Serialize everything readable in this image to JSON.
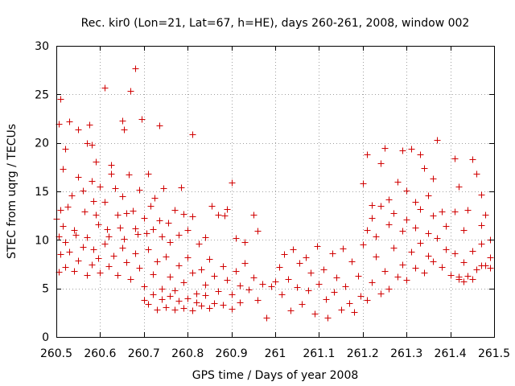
{
  "chart_data": {
    "type": "scatter",
    "title": "Rec. kir0 (Lon=21, Lat=67, h=HE), days 260-261, 2008, window 002",
    "xlabel": "GPS time / Days of year 2008",
    "ylabel": "STEC from uqrg / TECUs",
    "xlim": [
      260.5,
      261.5
    ],
    "ylim": [
      0,
      30
    ],
    "x_ticks": [
      "260.5",
      "260.6",
      "260.7",
      "260.8",
      "260.9",
      "261",
      "261.1",
      "261.2",
      "261.3",
      "261.4",
      "261.5"
    ],
    "y_ticks": [
      "0",
      "5",
      "10",
      "15",
      "20",
      "25",
      "30"
    ],
    "grid": true,
    "marker": "+",
    "color": "#d00000",
    "series": [
      {
        "points": [
          [
            260.505,
            22.0
          ],
          [
            260.51,
            24.5
          ],
          [
            260.515,
            17.3
          ],
          [
            260.52,
            19.4
          ],
          [
            260.53,
            22.2
          ],
          [
            260.55,
            21.4
          ],
          [
            260.57,
            20.0
          ],
          [
            260.575,
            21.9
          ],
          [
            260.58,
            19.8
          ],
          [
            260.59,
            18.1
          ],
          [
            260.61,
            25.7
          ],
          [
            260.625,
            17.7
          ],
          [
            260.65,
            22.3
          ],
          [
            260.655,
            21.4
          ],
          [
            260.67,
            25.4
          ],
          [
            260.68,
            27.7
          ],
          [
            260.695,
            22.5
          ],
          [
            260.735,
            21.8
          ],
          [
            260.81,
            20.9
          ],
          [
            260.5,
            12.2
          ],
          [
            260.505,
            10.4
          ],
          [
            260.51,
            13.1
          ],
          [
            260.515,
            11.4
          ],
          [
            260.52,
            9.8
          ],
          [
            260.525,
            13.4
          ],
          [
            260.535,
            14.6
          ],
          [
            260.54,
            11.0
          ],
          [
            260.545,
            10.5
          ],
          [
            260.55,
            16.5
          ],
          [
            260.56,
            15.1
          ],
          [
            260.565,
            12.9
          ],
          [
            260.57,
            10.3
          ],
          [
            260.58,
            16.1
          ],
          [
            260.585,
            14.0
          ],
          [
            260.59,
            12.6
          ],
          [
            260.595,
            11.6
          ],
          [
            260.6,
            15.5
          ],
          [
            260.61,
            13.9
          ],
          [
            260.615,
            11.1
          ],
          [
            260.62,
            10.4
          ],
          [
            260.625,
            16.8
          ],
          [
            260.635,
            15.3
          ],
          [
            260.64,
            12.6
          ],
          [
            260.645,
            11.3
          ],
          [
            260.65,
            14.5
          ],
          [
            260.655,
            10.1
          ],
          [
            260.66,
            12.8
          ],
          [
            260.665,
            16.7
          ],
          [
            260.675,
            13.0
          ],
          [
            260.68,
            11.2
          ],
          [
            260.685,
            10.6
          ],
          [
            260.69,
            15.2
          ],
          [
            260.7,
            12.3
          ],
          [
            260.705,
            10.7
          ],
          [
            260.71,
            16.8
          ],
          [
            260.715,
            13.5
          ],
          [
            260.72,
            11.1
          ],
          [
            260.725,
            14.3
          ],
          [
            260.735,
            12.0
          ],
          [
            260.74,
            10.4
          ],
          [
            260.745,
            15.3
          ],
          [
            260.755,
            11.8
          ],
          [
            260.76,
            9.8
          ],
          [
            260.77,
            13.1
          ],
          [
            260.78,
            10.5
          ],
          [
            260.785,
            15.4
          ],
          [
            260.79,
            12.7
          ],
          [
            260.8,
            11.0
          ],
          [
            260.81,
            12.4
          ],
          [
            260.825,
            9.6
          ],
          [
            260.84,
            10.3
          ],
          [
            260.855,
            13.5
          ],
          [
            260.87,
            12.6
          ],
          [
            260.885,
            12.5
          ],
          [
            260.89,
            13.2
          ],
          [
            260.9,
            15.9
          ],
          [
            260.91,
            10.2
          ],
          [
            260.93,
            9.8
          ],
          [
            260.95,
            12.6
          ],
          [
            260.96,
            10.9
          ],
          [
            260.505,
            6.7
          ],
          [
            260.51,
            8.5
          ],
          [
            260.52,
            7.2
          ],
          [
            260.53,
            8.8
          ],
          [
            260.54,
            6.8
          ],
          [
            260.55,
            7.9
          ],
          [
            260.56,
            9.3
          ],
          [
            260.57,
            6.4
          ],
          [
            260.58,
            7.5
          ],
          [
            260.585,
            9.0
          ],
          [
            260.595,
            8.1
          ],
          [
            260.6,
            6.6
          ],
          [
            260.61,
            9.6
          ],
          [
            260.62,
            7.3
          ],
          [
            260.63,
            8.4
          ],
          [
            260.64,
            6.4
          ],
          [
            260.65,
            9.2
          ],
          [
            260.66,
            7.7
          ],
          [
            260.67,
            6.0
          ],
          [
            260.68,
            8.6
          ],
          [
            260.69,
            7.1
          ],
          [
            260.7,
            5.2
          ],
          [
            260.71,
            9.0
          ],
          [
            260.72,
            6.5
          ],
          [
            260.73,
            7.8
          ],
          [
            260.74,
            5.0
          ],
          [
            260.75,
            8.3
          ],
          [
            260.76,
            6.2
          ],
          [
            260.77,
            4.8
          ],
          [
            260.78,
            7.4
          ],
          [
            260.79,
            5.6
          ],
          [
            260.8,
            8.2
          ],
          [
            260.81,
            6.6
          ],
          [
            260.82,
            4.5
          ],
          [
            260.83,
            7.0
          ],
          [
            260.84,
            5.4
          ],
          [
            260.85,
            8.0
          ],
          [
            260.86,
            6.3
          ],
          [
            260.87,
            4.7
          ],
          [
            260.88,
            7.3
          ],
          [
            260.89,
            5.9
          ],
          [
            260.9,
            4.4
          ],
          [
            260.91,
            6.8
          ],
          [
            260.92,
            5.3
          ],
          [
            260.93,
            7.6
          ],
          [
            260.94,
            4.9
          ],
          [
            260.95,
            6.1
          ],
          [
            260.96,
            3.8
          ],
          [
            260.97,
            5.5
          ],
          [
            260.98,
            2.0
          ],
          [
            260.99,
            5.2
          ],
          [
            260.7,
            3.8
          ],
          [
            260.71,
            3.4
          ],
          [
            260.72,
            4.4
          ],
          [
            260.73,
            2.8
          ],
          [
            260.74,
            3.9
          ],
          [
            260.75,
            3.1
          ],
          [
            260.76,
            4.2
          ],
          [
            260.77,
            2.8
          ],
          [
            260.78,
            3.7
          ],
          [
            260.79,
            3.0
          ],
          [
            260.8,
            4.0
          ],
          [
            260.81,
            2.7
          ],
          [
            260.82,
            3.6
          ],
          [
            260.83,
            3.2
          ],
          [
            260.84,
            4.3
          ],
          [
            260.85,
            3.0
          ],
          [
            260.86,
            3.5
          ],
          [
            260.88,
            3.3
          ],
          [
            260.9,
            2.9
          ],
          [
            260.92,
            3.6
          ],
          [
            261.0,
            5.7
          ],
          [
            261.01,
            7.2
          ],
          [
            261.015,
            4.4
          ],
          [
            261.02,
            8.5
          ],
          [
            261.03,
            6.0
          ],
          [
            261.035,
            2.7
          ],
          [
            261.04,
            9.0
          ],
          [
            261.05,
            5.1
          ],
          [
            261.055,
            7.6
          ],
          [
            261.06,
            3.4
          ],
          [
            261.07,
            8.2
          ],
          [
            261.075,
            4.8
          ],
          [
            261.08,
            6.6
          ],
          [
            261.09,
            2.4
          ],
          [
            261.095,
            9.4
          ],
          [
            261.1,
            5.5
          ],
          [
            261.11,
            7.0
          ],
          [
            261.115,
            3.9
          ],
          [
            261.12,
            2.0
          ],
          [
            261.13,
            8.6
          ],
          [
            261.135,
            4.6
          ],
          [
            261.14,
            6.1
          ],
          [
            261.15,
            2.8
          ],
          [
            261.155,
            9.1
          ],
          [
            261.16,
            5.2
          ],
          [
            261.17,
            3.5
          ],
          [
            261.175,
            7.8
          ],
          [
            261.18,
            2.6
          ],
          [
            261.19,
            6.3
          ],
          [
            261.195,
            4.2
          ],
          [
            261.2,
            9.5
          ],
          [
            261.21,
            3.8
          ],
          [
            261.22,
            5.6
          ],
          [
            261.23,
            8.3
          ],
          [
            261.24,
            4.5
          ],
          [
            261.25,
            6.8
          ],
          [
            261.26,
            5.0
          ],
          [
            261.27,
            9.2
          ],
          [
            261.28,
            6.2
          ],
          [
            261.29,
            7.5
          ],
          [
            261.3,
            5.9
          ],
          [
            261.31,
            8.8
          ],
          [
            261.32,
            7.1
          ],
          [
            261.33,
            9.7
          ],
          [
            261.34,
            6.6
          ],
          [
            261.35,
            8.4
          ],
          [
            261.36,
            7.8
          ],
          [
            261.37,
            10.2
          ],
          [
            261.38,
            7.2
          ],
          [
            261.39,
            9.0
          ],
          [
            261.4,
            6.4
          ],
          [
            261.41,
            8.6
          ],
          [
            261.42,
            6.0
          ],
          [
            261.43,
            7.7
          ],
          [
            261.44,
            6.3
          ],
          [
            261.45,
            8.9
          ],
          [
            261.46,
            7.0
          ],
          [
            261.47,
            9.6
          ],
          [
            261.48,
            7.4
          ],
          [
            261.49,
            8.2
          ],
          [
            261.2,
            15.8
          ],
          [
            261.21,
            18.8
          ],
          [
            261.22,
            13.6
          ],
          [
            261.24,
            17.9
          ],
          [
            261.25,
            19.5
          ],
          [
            261.26,
            14.2
          ],
          [
            261.28,
            16.0
          ],
          [
            261.29,
            19.2
          ],
          [
            261.3,
            15.1
          ],
          [
            261.31,
            19.4
          ],
          [
            261.32,
            13.9
          ],
          [
            261.33,
            18.8
          ],
          [
            261.34,
            17.4
          ],
          [
            261.35,
            14.6
          ],
          [
            261.36,
            16.3
          ],
          [
            261.37,
            20.3
          ],
          [
            261.38,
            12.9
          ],
          [
            261.41,
            18.4
          ],
          [
            261.42,
            15.5
          ],
          [
            261.45,
            18.3
          ],
          [
            261.46,
            16.8
          ],
          [
            261.47,
            14.7
          ],
          [
            261.48,
            12.6
          ],
          [
            261.21,
            11.0
          ],
          [
            261.22,
            12.3
          ],
          [
            261.23,
            10.4
          ],
          [
            261.24,
            13.5
          ],
          [
            261.26,
            11.6
          ],
          [
            261.27,
            12.8
          ],
          [
            261.29,
            10.9
          ],
          [
            261.3,
            12.1
          ],
          [
            261.32,
            11.3
          ],
          [
            261.33,
            13.2
          ],
          [
            261.35,
            10.7
          ],
          [
            261.36,
            12.5
          ],
          [
            261.39,
            11.4
          ],
          [
            261.41,
            12.9
          ],
          [
            261.43,
            11.0
          ],
          [
            261.44,
            13.1
          ],
          [
            261.47,
            11.5
          ],
          [
            261.49,
            10.0
          ],
          [
            261.42,
            6.2
          ],
          [
            261.43,
            5.7
          ],
          [
            261.45,
            6.0
          ],
          [
            261.47,
            7.4
          ],
          [
            261.49,
            7.1
          ]
        ]
      }
    ]
  }
}
